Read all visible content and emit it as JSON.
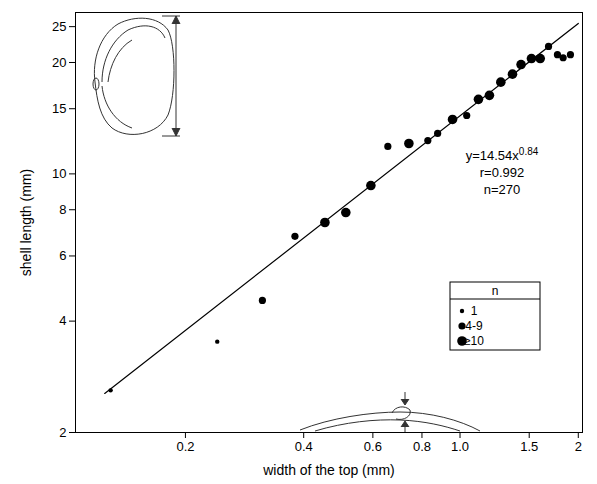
{
  "chart_data": {
    "type": "scatter",
    "x_label": "width of the top (mm)",
    "y_label": "shell length (mm)",
    "log": true,
    "xlim": [
      0.105,
      2.05
    ],
    "ylim": [
      2,
      27.3
    ],
    "xticks": [
      0.2,
      0.4,
      0.6,
      0.8,
      {
        "value": 1,
        "label": "1.0"
      },
      1.5,
      2
    ],
    "yticks": [
      2,
      4,
      6,
      8,
      10,
      15,
      20,
      25
    ],
    "legend": "bottom-right",
    "legend_title": "n",
    "series": [
      {
        "name": "1",
        "type": "scatter",
        "marker": "circle",
        "color": "#000000",
        "x": [
          0.129,
          0.241
        ],
        "values": [
          2.6,
          3.52
        ]
      },
      {
        "name": "4-9",
        "type": "scatter",
        "marker": "circle",
        "color": "#000000",
        "x": [
          0.314,
          0.38,
          0.655,
          0.828,
          0.877,
          1.04,
          1.68,
          1.77,
          1.83,
          1.91
        ],
        "values": [
          4.55,
          6.78,
          11.86,
          12.3,
          12.86,
          14.38,
          22.1,
          21.0,
          20.6,
          21.0
        ]
      },
      {
        "name": "≥10",
        "type": "scatter",
        "marker": "circle",
        "color": "#000000",
        "x": [
          0.453,
          0.512,
          0.593,
          0.741,
          0.957,
          1.114,
          1.188,
          1.27,
          1.36,
          1.43,
          1.52,
          1.6
        ],
        "values": [
          7.39,
          7.86,
          9.3,
          12.08,
          14.03,
          15.9,
          16.3,
          17.7,
          18.6,
          19.75,
          20.5,
          20.5
        ]
      }
    ],
    "fit_line": {
      "type": "line",
      "line_style": "solid",
      "color": "#000000",
      "x": [
        0.1246,
        2.0
      ],
      "values": [
        2.55,
        25.5
      ]
    },
    "annotations": [
      {
        "text": "y=14.54x",
        "superscript": "0.84"
      },
      {
        "text": "r=0.992"
      },
      {
        "text": "n=270"
      }
    ]
  }
}
